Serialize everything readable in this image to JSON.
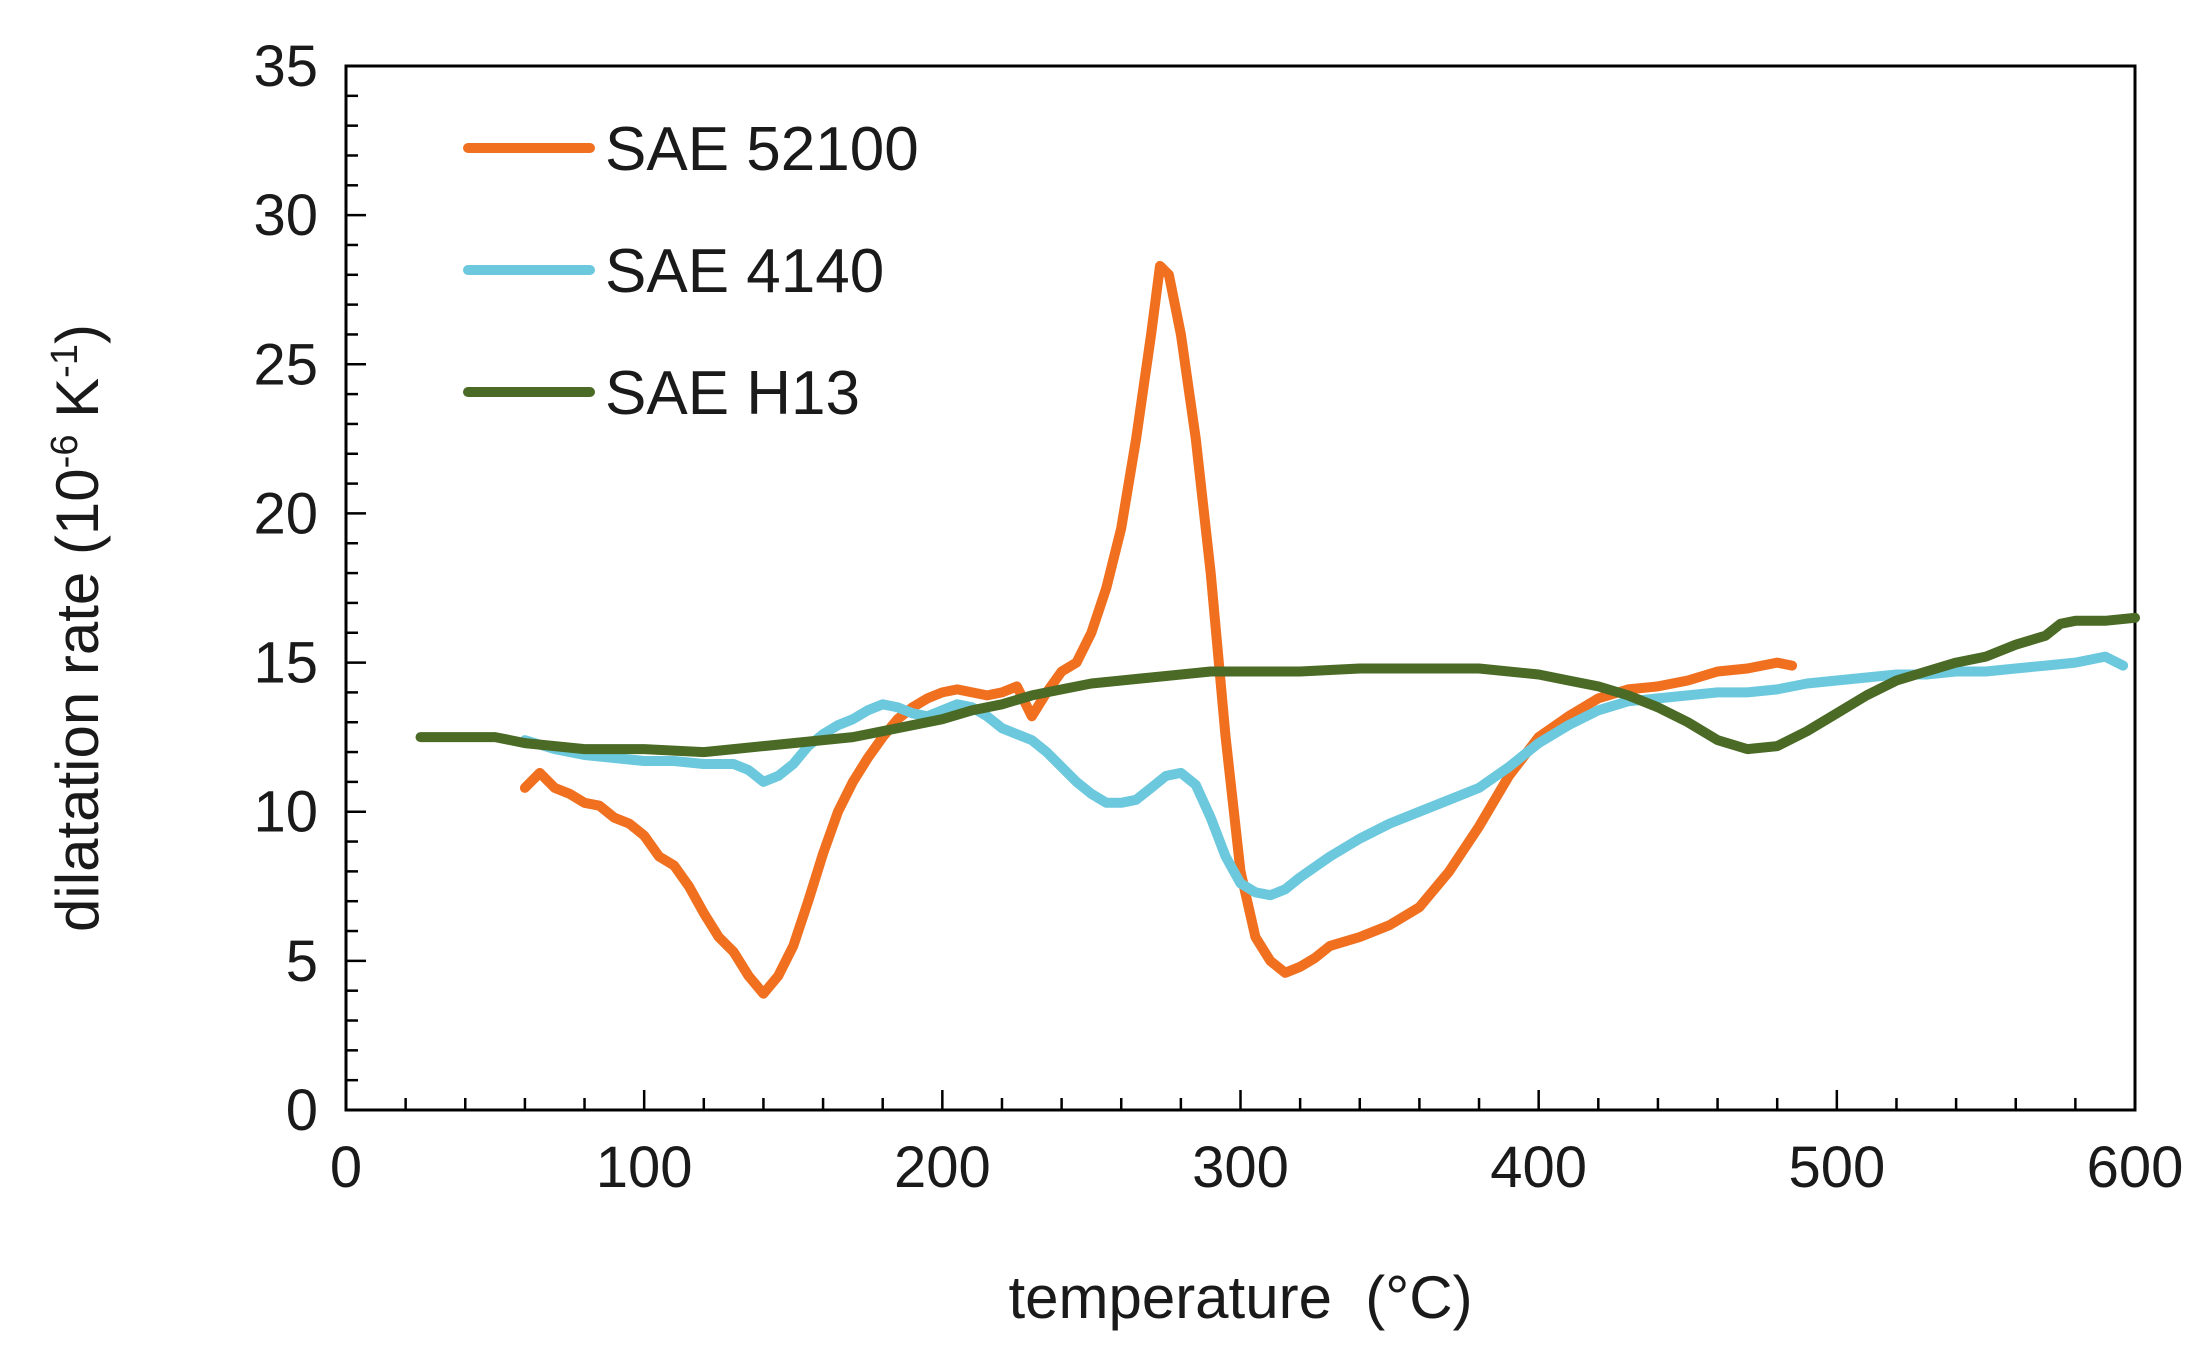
{
  "chart_data": {
    "type": "line",
    "title": "",
    "xlabel": "temperature  (°C)",
    "ylabel": {
      "prefix": "dilatation rate (10",
      "exp1": "-6",
      "mid": " K",
      "exp2": "-1",
      "suffix": ")"
    },
    "xlim": [
      0,
      600
    ],
    "ylim": [
      0,
      35
    ],
    "xticks": [
      "0",
      "100",
      "200",
      "300",
      "400",
      "500",
      "600"
    ],
    "yticks": [
      "0",
      "5",
      "10",
      "15",
      "20",
      "25",
      "30",
      "35"
    ],
    "legend_position": "top-left",
    "series": [
      {
        "name": "SAE 52100",
        "color": "#f07020",
        "points": [
          [
            60,
            10.8
          ],
          [
            65,
            11.3
          ],
          [
            70,
            10.8
          ],
          [
            75,
            10.6
          ],
          [
            80,
            10.3
          ],
          [
            85,
            10.2
          ],
          [
            90,
            9.8
          ],
          [
            95,
            9.6
          ],
          [
            100,
            9.2
          ],
          [
            105,
            8.5
          ],
          [
            110,
            8.2
          ],
          [
            115,
            7.5
          ],
          [
            120,
            6.6
          ],
          [
            125,
            5.8
          ],
          [
            130,
            5.3
          ],
          [
            135,
            4.5
          ],
          [
            140,
            3.9
          ],
          [
            145,
            4.5
          ],
          [
            150,
            5.5
          ],
          [
            155,
            7.0
          ],
          [
            160,
            8.6
          ],
          [
            165,
            10.0
          ],
          [
            170,
            11.0
          ],
          [
            175,
            11.8
          ],
          [
            180,
            12.5
          ],
          [
            185,
            13.1
          ],
          [
            190,
            13.5
          ],
          [
            195,
            13.8
          ],
          [
            200,
            14.0
          ],
          [
            205,
            14.1
          ],
          [
            210,
            14.0
          ],
          [
            215,
            13.9
          ],
          [
            220,
            14.0
          ],
          [
            225,
            14.2
          ],
          [
            230,
            13.2
          ],
          [
            235,
            14.0
          ],
          [
            240,
            14.7
          ],
          [
            245,
            15.0
          ],
          [
            250,
            16.0
          ],
          [
            255,
            17.5
          ],
          [
            260,
            19.5
          ],
          [
            265,
            22.5
          ],
          [
            270,
            26.0
          ],
          [
            273,
            28.3
          ],
          [
            276,
            28.0
          ],
          [
            280,
            26.0
          ],
          [
            285,
            22.5
          ],
          [
            290,
            18.0
          ],
          [
            295,
            12.5
          ],
          [
            300,
            8.0
          ],
          [
            305,
            5.8
          ],
          [
            310,
            5.0
          ],
          [
            315,
            4.6
          ],
          [
            320,
            4.8
          ],
          [
            325,
            5.1
          ],
          [
            330,
            5.5
          ],
          [
            340,
            5.8
          ],
          [
            350,
            6.2
          ],
          [
            360,
            6.8
          ],
          [
            370,
            8.0
          ],
          [
            380,
            9.5
          ],
          [
            390,
            11.2
          ],
          [
            400,
            12.5
          ],
          [
            410,
            13.2
          ],
          [
            420,
            13.8
          ],
          [
            430,
            14.1
          ],
          [
            440,
            14.2
          ],
          [
            450,
            14.4
          ],
          [
            460,
            14.7
          ],
          [
            470,
            14.8
          ],
          [
            480,
            15.0
          ],
          [
            485,
            14.9
          ]
        ]
      },
      {
        "name": "SAE 4140",
        "color": "#6cc8dd",
        "points": [
          [
            60,
            12.4
          ],
          [
            70,
            12.1
          ],
          [
            80,
            11.9
          ],
          [
            90,
            11.8
          ],
          [
            100,
            11.7
          ],
          [
            110,
            11.7
          ],
          [
            120,
            11.6
          ],
          [
            130,
            11.6
          ],
          [
            135,
            11.4
          ],
          [
            140,
            11.0
          ],
          [
            145,
            11.2
          ],
          [
            150,
            11.6
          ],
          [
            155,
            12.2
          ],
          [
            160,
            12.6
          ],
          [
            165,
            12.9
          ],
          [
            170,
            13.1
          ],
          [
            175,
            13.4
          ],
          [
            180,
            13.6
          ],
          [
            185,
            13.5
          ],
          [
            190,
            13.3
          ],
          [
            195,
            13.2
          ],
          [
            200,
            13.4
          ],
          [
            205,
            13.6
          ],
          [
            210,
            13.5
          ],
          [
            215,
            13.2
          ],
          [
            220,
            12.8
          ],
          [
            225,
            12.6
          ],
          [
            230,
            12.4
          ],
          [
            235,
            12.0
          ],
          [
            240,
            11.5
          ],
          [
            245,
            11.0
          ],
          [
            250,
            10.6
          ],
          [
            255,
            10.3
          ],
          [
            260,
            10.3
          ],
          [
            265,
            10.4
          ],
          [
            270,
            10.8
          ],
          [
            275,
            11.2
          ],
          [
            280,
            11.3
          ],
          [
            285,
            10.9
          ],
          [
            290,
            9.8
          ],
          [
            295,
            8.5
          ],
          [
            300,
            7.6
          ],
          [
            305,
            7.3
          ],
          [
            310,
            7.2
          ],
          [
            315,
            7.4
          ],
          [
            320,
            7.8
          ],
          [
            330,
            8.5
          ],
          [
            340,
            9.1
          ],
          [
            350,
            9.6
          ],
          [
            360,
            10.0
          ],
          [
            370,
            10.4
          ],
          [
            380,
            10.8
          ],
          [
            390,
            11.5
          ],
          [
            400,
            12.3
          ],
          [
            410,
            12.9
          ],
          [
            420,
            13.4
          ],
          [
            430,
            13.7
          ],
          [
            440,
            13.8
          ],
          [
            450,
            13.9
          ],
          [
            460,
            14.0
          ],
          [
            470,
            14.0
          ],
          [
            480,
            14.1
          ],
          [
            490,
            14.3
          ],
          [
            500,
            14.4
          ],
          [
            510,
            14.5
          ],
          [
            520,
            14.6
          ],
          [
            530,
            14.6
          ],
          [
            540,
            14.7
          ],
          [
            550,
            14.7
          ],
          [
            560,
            14.8
          ],
          [
            570,
            14.9
          ],
          [
            580,
            15.0
          ],
          [
            590,
            15.2
          ],
          [
            596,
            14.9
          ]
        ]
      },
      {
        "name": "SAE H13",
        "color": "#4a6a25",
        "points": [
          [
            25,
            12.5
          ],
          [
            50,
            12.5
          ],
          [
            60,
            12.3
          ],
          [
            80,
            12.1
          ],
          [
            100,
            12.1
          ],
          [
            120,
            12.0
          ],
          [
            130,
            12.1
          ],
          [
            140,
            12.2
          ],
          [
            150,
            12.3
          ],
          [
            160,
            12.4
          ],
          [
            170,
            12.5
          ],
          [
            180,
            12.7
          ],
          [
            190,
            12.9
          ],
          [
            200,
            13.1
          ],
          [
            210,
            13.4
          ],
          [
            220,
            13.6
          ],
          [
            230,
            13.9
          ],
          [
            240,
            14.1
          ],
          [
            250,
            14.3
          ],
          [
            260,
            14.4
          ],
          [
            270,
            14.5
          ],
          [
            280,
            14.6
          ],
          [
            290,
            14.7
          ],
          [
            300,
            14.7
          ],
          [
            320,
            14.7
          ],
          [
            340,
            14.8
          ],
          [
            360,
            14.8
          ],
          [
            380,
            14.8
          ],
          [
            400,
            14.6
          ],
          [
            410,
            14.4
          ],
          [
            420,
            14.2
          ],
          [
            430,
            13.9
          ],
          [
            440,
            13.5
          ],
          [
            450,
            13.0
          ],
          [
            460,
            12.4
          ],
          [
            470,
            12.1
          ],
          [
            480,
            12.2
          ],
          [
            490,
            12.7
          ],
          [
            500,
            13.3
          ],
          [
            510,
            13.9
          ],
          [
            520,
            14.4
          ],
          [
            530,
            14.7
          ],
          [
            540,
            15.0
          ],
          [
            550,
            15.2
          ],
          [
            560,
            15.6
          ],
          [
            570,
            15.9
          ],
          [
            575,
            16.3
          ],
          [
            580,
            16.4
          ],
          [
            590,
            16.4
          ],
          [
            600,
            16.5
          ]
        ]
      }
    ]
  }
}
